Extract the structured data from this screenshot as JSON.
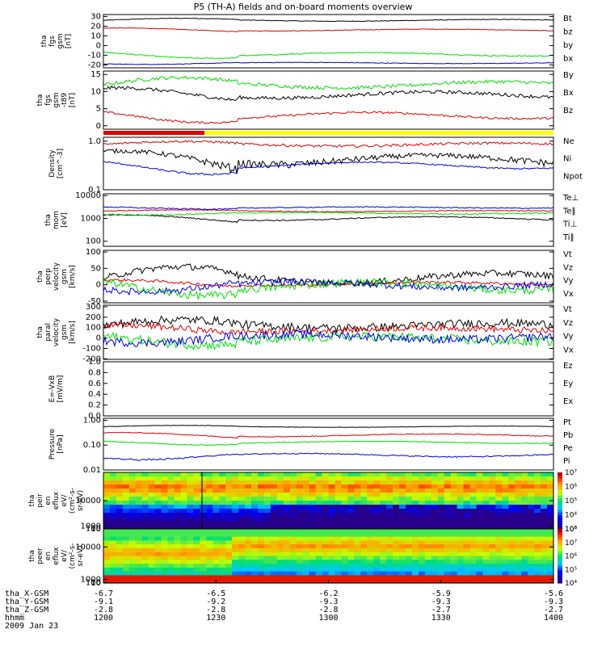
{
  "title": "P5 (TH-A) fields and on-board moments overview",
  "colors": {
    "black": "#000000",
    "red": "#e00000",
    "green": "#00e000",
    "blue": "#0000e0",
    "yellow": "#ffff00"
  },
  "chart_data": [
    {
      "id": "fgs_gsm",
      "type": "line",
      "ylabel": [
        "tha",
        "fgs",
        "gsm",
        "[nT]"
      ],
      "ylim": [
        -23,
        32
      ],
      "ticks": [
        -20,
        -10,
        0,
        10,
        20,
        30
      ],
      "series": [
        {
          "name": "Bt",
          "color": "black",
          "level": 26,
          "amp": 1.5,
          "noise": 0.3
        },
        {
          "name": "bz",
          "color": "red",
          "level": 16,
          "amp": 1.5,
          "noise": 0.3
        },
        {
          "name": "by",
          "color": "green",
          "level": -9,
          "amp": 3,
          "noise": 0.5
        },
        {
          "name": "bx",
          "color": "blue",
          "level": -18,
          "amp": 1,
          "noise": 0.3
        }
      ]
    },
    {
      "id": "fgs_t89",
      "type": "line",
      "ylabel": [
        "tha",
        "fgs",
        "gsm",
        "-t89",
        "[nT]"
      ],
      "ylim": [
        -1,
        16
      ],
      "ticks": [
        0,
        5,
        10,
        15
      ],
      "series": [
        {
          "name": "By",
          "color": "green",
          "level": 12,
          "amp": 1.5,
          "noise": 0.5
        },
        {
          "name": "Bx",
          "color": "black",
          "level": 9,
          "amp": 1.5,
          "noise": 0.5
        },
        {
          "name": "Bz",
          "color": "red",
          "level": 3,
          "amp": 1.5,
          "noise": 0.3
        }
      ]
    },
    {
      "id": "density",
      "type": "line",
      "log": true,
      "ylabel": [
        "Density",
        "[cm^-3]"
      ],
      "ylim": [
        0.1,
        1.2
      ],
      "ticks": [
        0.1,
        1.0
      ],
      "tick_labels": [
        "0.1",
        "1.0"
      ],
      "series": [
        {
          "name": "Ne",
          "color": "red",
          "level": 0.85,
          "amp": 0.1,
          "noise": 0.05
        },
        {
          "name": "Ni",
          "color": "black",
          "level": 0.42,
          "amp": 0.15,
          "noise": 0.06
        },
        {
          "name": "Npot",
          "color": "blue",
          "level": 0.32,
          "amp": 0.08,
          "noise": 0.01
        }
      ]
    },
    {
      "id": "temp",
      "type": "line",
      "log": true,
      "ylabel": [
        "tha",
        "mom",
        "[eV]"
      ],
      "ylim": [
        60,
        12000
      ],
      "ticks": [
        100,
        1000,
        10000
      ],
      "tick_labels": [
        "100",
        "1000",
        "10000"
      ],
      "series": [
        {
          "name": "Te⊥",
          "color": "red",
          "level": 2100,
          "amp": 200,
          "noise": 100
        },
        {
          "name": "Te∥",
          "color": "black",
          "level": 1000,
          "amp": 300,
          "noise": 50
        },
        {
          "name": "Ti⊥",
          "color": "blue",
          "level": 3000,
          "amp": 300,
          "noise": 150
        },
        {
          "name": "Ti∥",
          "color": "green",
          "level": 1700,
          "amp": 200,
          "noise": 100
        }
      ]
    },
    {
      "id": "perp_vel",
      "type": "line",
      "ylabel": [
        "tha",
        "perp",
        "velocity",
        "gsm",
        "[km/s]"
      ],
      "ylim": [
        -55,
        105
      ],
      "ticks": [
        -50,
        0,
        50,
        100
      ],
      "series": [
        {
          "name": "Vt",
          "color": "black",
          "level": 20,
          "amp": 25,
          "noise": 10
        },
        {
          "name": "Vz",
          "color": "red",
          "level": 3,
          "amp": 8,
          "noise": 4
        },
        {
          "name": "Vy",
          "color": "green",
          "level": -5,
          "amp": 20,
          "noise": 12
        },
        {
          "name": "Vx",
          "color": "blue",
          "level": 0,
          "amp": 15,
          "noise": 10
        }
      ]
    },
    {
      "id": "para_vel",
      "type": "line",
      "ylabel": [
        "tha",
        "paral",
        "velocity",
        "gsm",
        "[km/s]"
      ],
      "ylim": [
        -205,
        315
      ],
      "ticks": [
        -200,
        -100,
        0,
        100,
        200,
        300
      ],
      "series": [
        {
          "name": "Vt",
          "color": "black",
          "level": 120,
          "amp": 40,
          "noise": 40
        },
        {
          "name": "Vz",
          "color": "red",
          "level": 80,
          "amp": 30,
          "noise": 30
        },
        {
          "name": "Vy",
          "color": "green",
          "level": -10,
          "amp": 40,
          "noise": 45
        },
        {
          "name": "Vx",
          "color": "blue",
          "level": 10,
          "amp": 40,
          "noise": 40
        }
      ]
    },
    {
      "id": "efield",
      "type": "line",
      "ylabel": [
        "E=-VxB",
        "[mV/m]"
      ],
      "ylim": [
        0,
        1.0
      ],
      "ticks": [
        0.0,
        0.2,
        0.4,
        0.6,
        0.8,
        1.0
      ],
      "tick_labels": [
        "0.0",
        "0.2",
        "0.4",
        "0.6",
        "0.8",
        "1.0"
      ],
      "series": [
        {
          "name": "Ez",
          "color": "red"
        },
        {
          "name": "Ey",
          "color": "green"
        },
        {
          "name": "Ex",
          "color": "blue"
        }
      ]
    },
    {
      "id": "pressure",
      "type": "line",
      "log": true,
      "ylabel": [
        "Pressure",
        "[nPa]"
      ],
      "ylim": [
        0.01,
        1.2
      ],
      "ticks": [
        0.01,
        0.1,
        1.0
      ],
      "tick_labels": [
        "0.01",
        "0.10",
        "1.00"
      ],
      "series": [
        {
          "name": "Pt",
          "color": "black",
          "level": 0.55,
          "amp": 0.05,
          "noise": 0.01
        },
        {
          "name": "Pb",
          "color": "red",
          "level": 0.25,
          "amp": 0.05,
          "noise": 0.01
        },
        {
          "name": "Pe",
          "color": "green",
          "level": 0.13,
          "amp": 0.02,
          "noise": 0.005
        },
        {
          "name": "Pi",
          "color": "blue",
          "level": 0.04,
          "amp": 0.01,
          "noise": 0.002
        }
      ]
    },
    {
      "id": "ion_spec",
      "type": "heatmap",
      "ylabel": [
        "tha",
        "peir",
        "en",
        "eflux",
        "eV/",
        "(cm²-s-",
        "sr-eV)"
      ],
      "ylim": [
        7,
        20000
      ],
      "ticks": [
        10,
        100,
        1000,
        10000
      ],
      "tick_labels": [
        "10",
        "100",
        "1000",
        "10000"
      ],
      "colorbar": [
        "10³",
        "10⁴",
        "10⁵",
        "10⁶",
        "10⁷"
      ]
    },
    {
      "id": "elec_spec",
      "type": "heatmap",
      "ylabel": [
        "tha",
        "peer",
        "en",
        "eflux",
        "eV/",
        "(cm²-s-",
        "sr-eV)"
      ],
      "ylim": [
        8,
        15000
      ],
      "ticks": [
        10,
        100,
        1000,
        10000
      ],
      "tick_labels": [
        "10",
        "100",
        "1000",
        "10000"
      ],
      "colorbar": [
        "10⁴",
        "10⁵",
        "10⁶",
        "10⁷",
        "10⁸"
      ]
    }
  ],
  "ephemeris": {
    "rows": [
      {
        "label": "tha_X-GSM",
        "values": [
          "-6.7",
          "-6.5",
          "-6.2",
          "-5.9",
          "-5.6"
        ]
      },
      {
        "label": "tha_Y-GSM",
        "values": [
          "-9.1",
          "-9.2",
          "-9.3",
          "-9.3",
          "-9.3"
        ]
      },
      {
        "label": "tha_Z-GSM",
        "values": [
          "-2.8",
          "-2.8",
          "-2.8",
          "-2.7",
          "-2.7"
        ]
      },
      {
        "label": "hhmm",
        "values": [
          "1200",
          "1230",
          "1300",
          "1330",
          "1400"
        ]
      }
    ],
    "date": "2009 Jan 23"
  }
}
